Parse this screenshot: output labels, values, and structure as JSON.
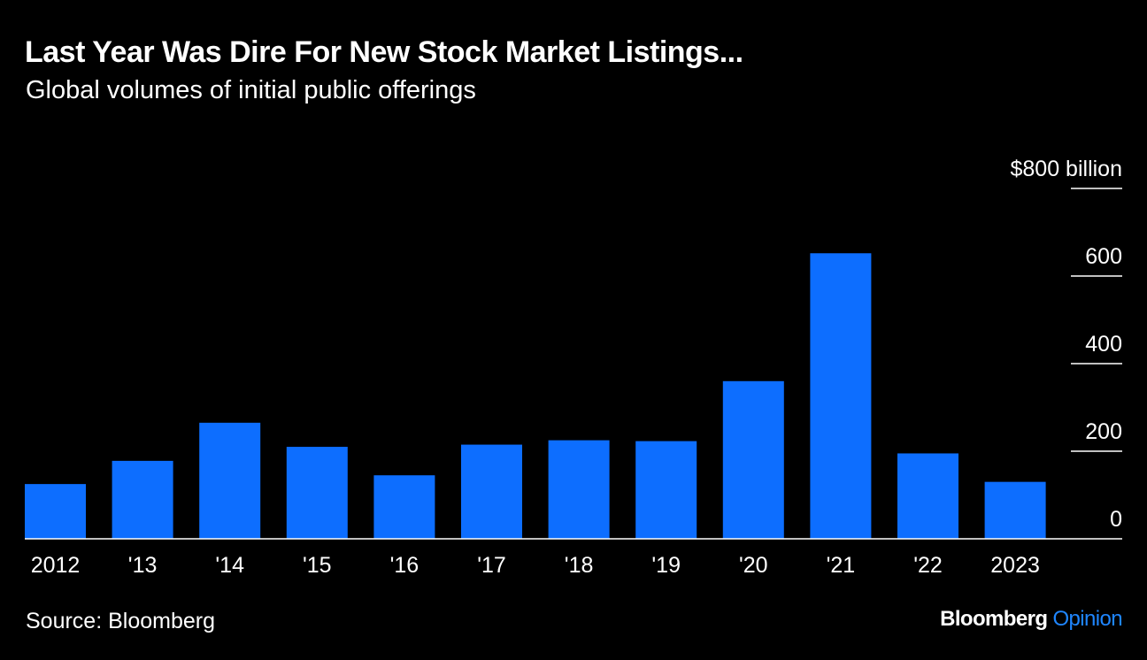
{
  "header": {
    "title": "Last Year Was Dire For New Stock Market Listings...",
    "subtitle": "Global volumes of initial public offerings"
  },
  "footer": {
    "source": "Source: Bloomberg",
    "brand_main": "Bloomberg",
    "brand_accent": "Opinion"
  },
  "colors": {
    "background": "#000000",
    "bar": "#0d6eff",
    "text": "#ffffff",
    "accent": "#1f86ff"
  },
  "chart_data": {
    "type": "bar",
    "categories": [
      "2012",
      "'13",
      "'14",
      "'15",
      "'16",
      "'17",
      "'18",
      "'19",
      "'20",
      "'21",
      "'22",
      "2023"
    ],
    "values": [
      125,
      178,
      265,
      210,
      145,
      215,
      225,
      223,
      360,
      652,
      195,
      130
    ],
    "yticks": [
      {
        "value": 0,
        "label": "0"
      },
      {
        "value": 200,
        "label": "200"
      },
      {
        "value": 400,
        "label": "400"
      },
      {
        "value": 600,
        "label": "600"
      },
      {
        "value": 800,
        "label": "$800 billion"
      }
    ],
    "ylim": [
      0,
      800
    ],
    "yaxis_position": "right",
    "grid": false
  }
}
